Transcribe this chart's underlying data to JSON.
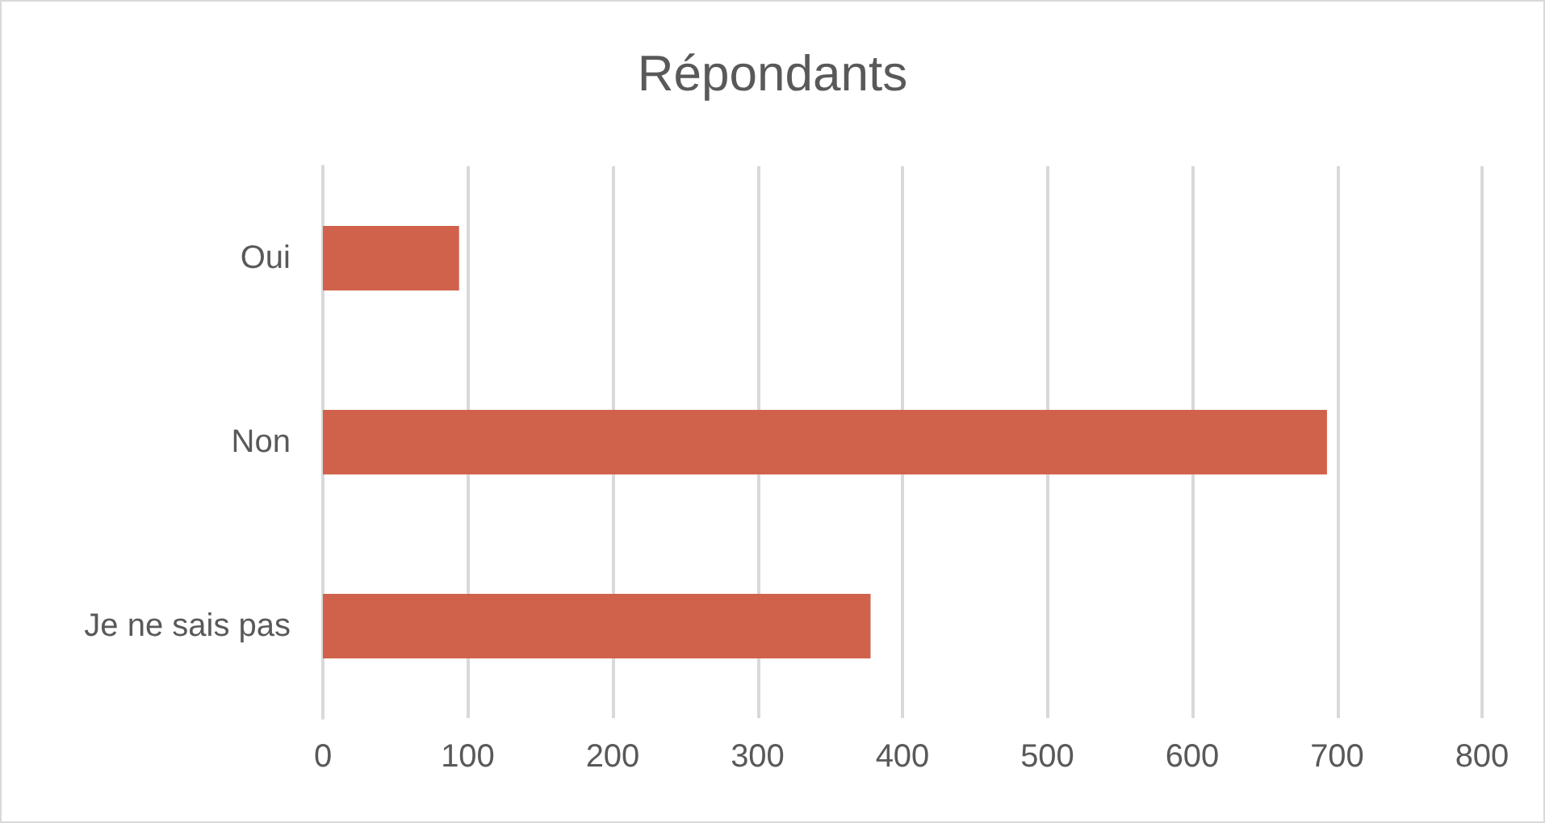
{
  "chart_data": {
    "type": "bar",
    "orientation": "horizontal",
    "title": "Répondants",
    "categories": [
      "Oui",
      "Non",
      "Je ne sais pas"
    ],
    "values": [
      94,
      693,
      378
    ],
    "color": "#d0624b",
    "xlim": [
      0,
      800
    ],
    "xticks": [
      0,
      100,
      200,
      300,
      400,
      500,
      600,
      700,
      800
    ],
    "grid": "x"
  }
}
